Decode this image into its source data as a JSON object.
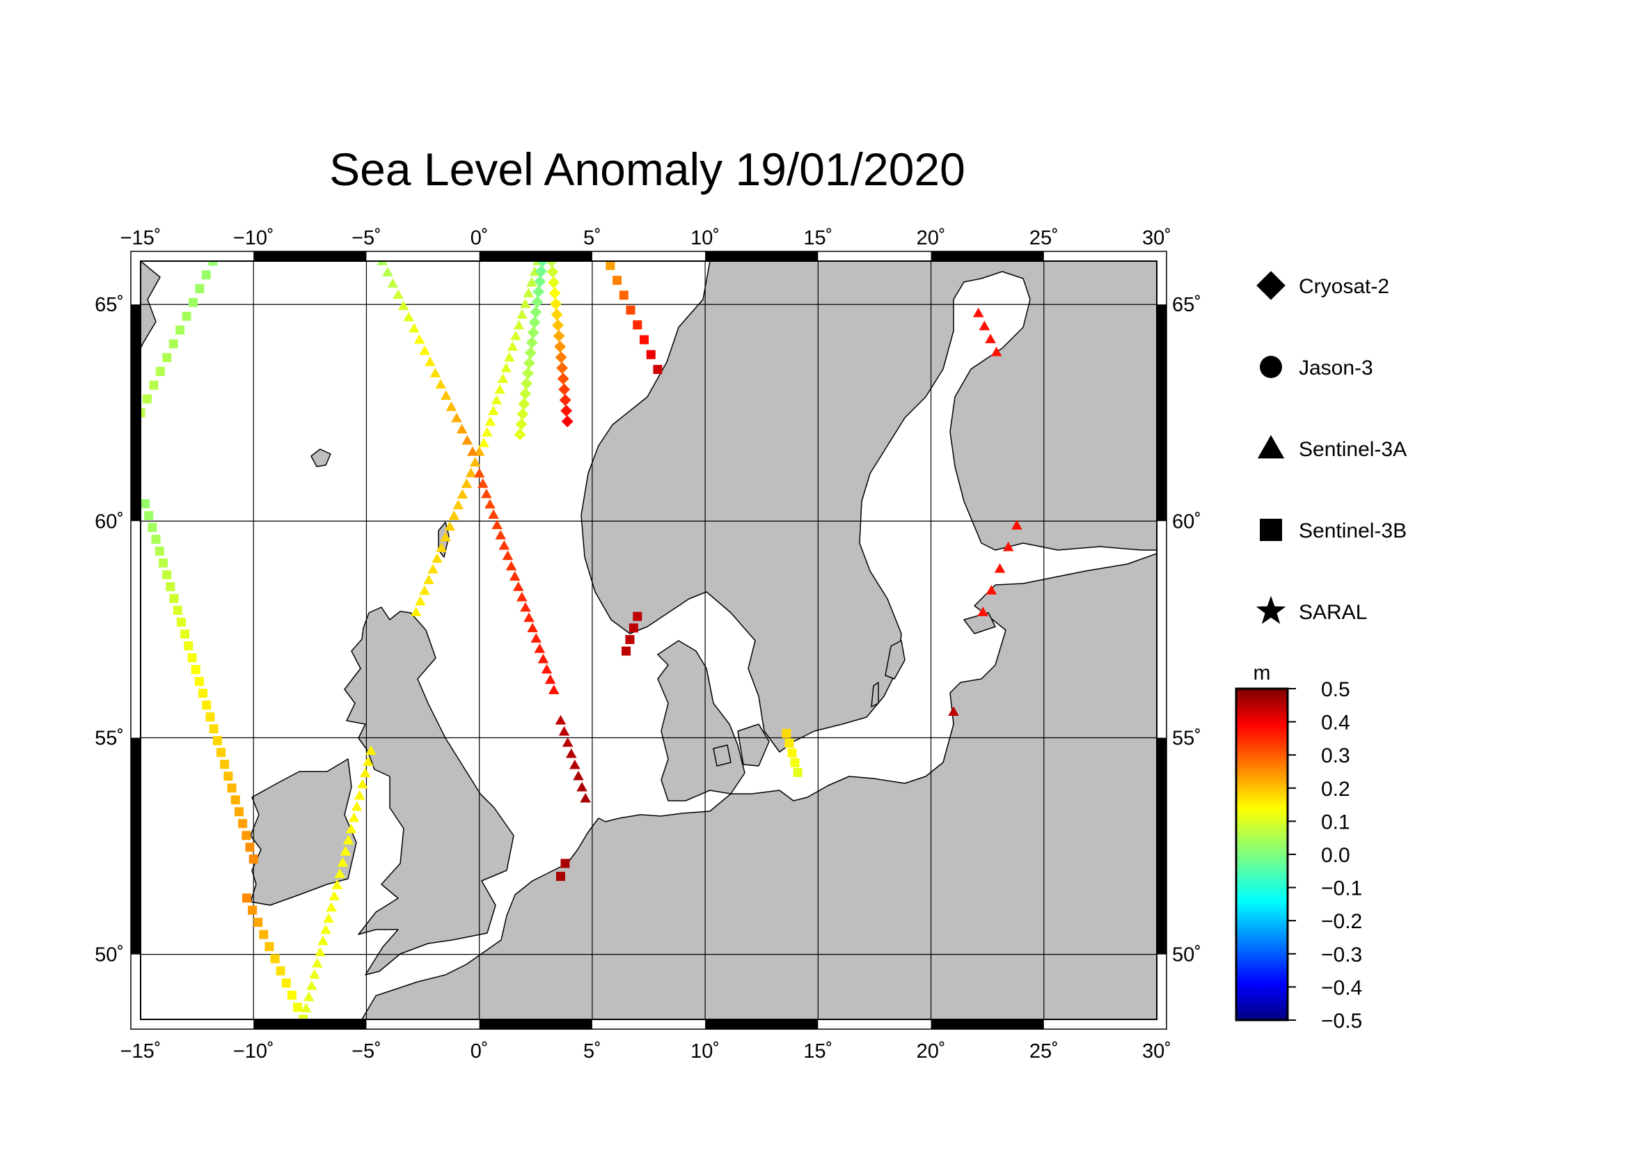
{
  "title": "Sea Level Anomaly 19/01/2020",
  "map": {
    "lon_range": [
      -15,
      30
    ],
    "lat_range": [
      48.5,
      66.0
    ],
    "lon_ticks": [
      "−15˚",
      "−10˚",
      "−5˚",
      "0˚",
      "5˚",
      "10˚",
      "15˚",
      "20˚",
      "25˚",
      "30˚"
    ],
    "lat_ticks": [
      "65˚",
      "60˚",
      "55˚",
      "50˚"
    ],
    "lon_tick_values": [
      -15,
      -10,
      -5,
      0,
      5,
      10,
      15,
      20,
      25,
      30
    ],
    "lat_tick_values": [
      65,
      60,
      55,
      50
    ],
    "land_color": "#bebebe",
    "sea_color": "#ffffff",
    "grid": true
  },
  "legend": {
    "items": [
      {
        "label": "Cryosat-2",
        "marker": "diamond"
      },
      {
        "label": "Jason-3",
        "marker": "circle"
      },
      {
        "label": "Sentinel-3A",
        "marker": "triangle"
      },
      {
        "label": "Sentinel-3B",
        "marker": "square"
      },
      {
        "label": "SARAL",
        "marker": "star"
      }
    ]
  },
  "colorbar": {
    "unit": "m",
    "min": -0.5,
    "max": 0.5,
    "tick_labels": [
      "0.5",
      "0.4",
      "0.3",
      "0.2",
      "0.1",
      "0.0",
      "−0.1",
      "−0.2",
      "−0.3",
      "−0.4",
      "−0.5"
    ],
    "colormap": "jet"
  },
  "chart_data": {
    "type": "scatter",
    "title": "Sea Level Anomaly 19/01/2020",
    "xlabel": "",
    "ylabel": "",
    "xlim": [
      -15,
      30
    ],
    "ylim": [
      48.5,
      66.0
    ],
    "tracks": [
      {
        "satellite": "Sentinel-3B",
        "marker": "square",
        "start": [
          -11.8,
          66.0
        ],
        "end": [
          -15.0,
          62.5
        ],
        "n": 12,
        "v0": 0.02,
        "v1": 0.06
      },
      {
        "satellite": "Sentinel-3B",
        "marker": "square",
        "start": [
          -14.8,
          60.4
        ],
        "end": [
          -10.0,
          52.2
        ],
        "n": 31,
        "v0": 0.02,
        "v1": 0.24
      },
      {
        "satellite": "Sentinel-3B",
        "marker": "square",
        "start": [
          -10.3,
          51.3
        ],
        "end": [
          -7.8,
          48.5
        ],
        "n": 11,
        "v0": 0.24,
        "v1": 0.1
      },
      {
        "satellite": "Sentinel-3A",
        "marker": "triangle",
        "start": [
          -7.8,
          48.5
        ],
        "end": [
          -4.8,
          54.7
        ],
        "n": 25,
        "v0": 0.1,
        "v1": 0.14
      },
      {
        "satellite": "Sentinel-3A",
        "marker": "triangle",
        "start": [
          -2.8,
          57.9
        ],
        "end": [
          0.0,
          61.6
        ],
        "n": 16,
        "v0": 0.14,
        "v1": 0.2
      },
      {
        "satellite": "Sentinel-3A",
        "marker": "triangle",
        "start": [
          0.2,
          61.8
        ],
        "end": [
          2.6,
          66.0
        ],
        "n": 18,
        "v0": 0.12,
        "v1": 0.06
      },
      {
        "satellite": "Sentinel-3A",
        "marker": "triangle",
        "start": [
          -4.3,
          66.0
        ],
        "end": [
          -0.3,
          61.6
        ],
        "n": 18,
        "v0": 0.04,
        "v1": 0.24
      },
      {
        "satellite": "Sentinel-3A",
        "marker": "triangle",
        "start": [
          0.0,
          61.1
        ],
        "end": [
          3.3,
          56.1
        ],
        "n": 22,
        "v0": 0.3,
        "v1": 0.36
      },
      {
        "satellite": "Sentinel-3A",
        "marker": "triangle",
        "start": [
          3.6,
          55.4
        ],
        "end": [
          4.7,
          53.6
        ],
        "n": 8,
        "v0": 0.44,
        "v1": 0.46
      },
      {
        "satellite": "Sentinel-3A",
        "marker": "triangle",
        "start": [
          22.1,
          64.8
        ],
        "end": [
          22.9,
          63.9
        ],
        "n": 4,
        "v0": 0.36,
        "v1": 0.36
      },
      {
        "satellite": "Sentinel-3A",
        "marker": "triangle",
        "start": [
          23.8,
          59.9
        ],
        "end": [
          22.3,
          57.9
        ],
        "n": 5,
        "v0": 0.36,
        "v1": 0.36
      },
      {
        "satellite": "Sentinel-3A",
        "marker": "triangle",
        "start": [
          21.0,
          55.6
        ],
        "end": [
          21.0,
          55.6
        ],
        "n": 1,
        "v0": 0.44,
        "v1": 0.44
      },
      {
        "satellite": "Cryosat-2",
        "marker": "diamond",
        "start": [
          2.8,
          66.0
        ],
        "end": [
          1.8,
          62.0
        ],
        "n": 18,
        "v0": -0.02,
        "v1": 0.1
      },
      {
        "satellite": "Cryosat-2",
        "marker": "diamond",
        "start": [
          3.2,
          66.0
        ],
        "end": [
          3.9,
          62.3
        ],
        "n": 16,
        "v0": 0.06,
        "v1": 0.38
      },
      {
        "satellite": "Sentinel-3B",
        "marker": "square",
        "start": [
          5.8,
          65.9
        ],
        "end": [
          7.9,
          63.5
        ],
        "n": 8,
        "v0": 0.22,
        "v1": 0.42
      },
      {
        "satellite": "Sentinel-3B",
        "marker": "square",
        "start": [
          7.0,
          57.8
        ],
        "end": [
          6.5,
          57.0
        ],
        "n": 4,
        "v0": 0.44,
        "v1": 0.44
      },
      {
        "satellite": "Sentinel-3B",
        "marker": "square",
        "start": [
          3.8,
          52.1
        ],
        "end": [
          3.6,
          51.8
        ],
        "n": 2,
        "v0": 0.46,
        "v1": 0.46
      },
      {
        "satellite": "Sentinel-3B",
        "marker": "square",
        "start": [
          13.6,
          55.1
        ],
        "end": [
          14.1,
          54.2
        ],
        "n": 5,
        "v0": 0.16,
        "v1": 0.1
      }
    ]
  }
}
